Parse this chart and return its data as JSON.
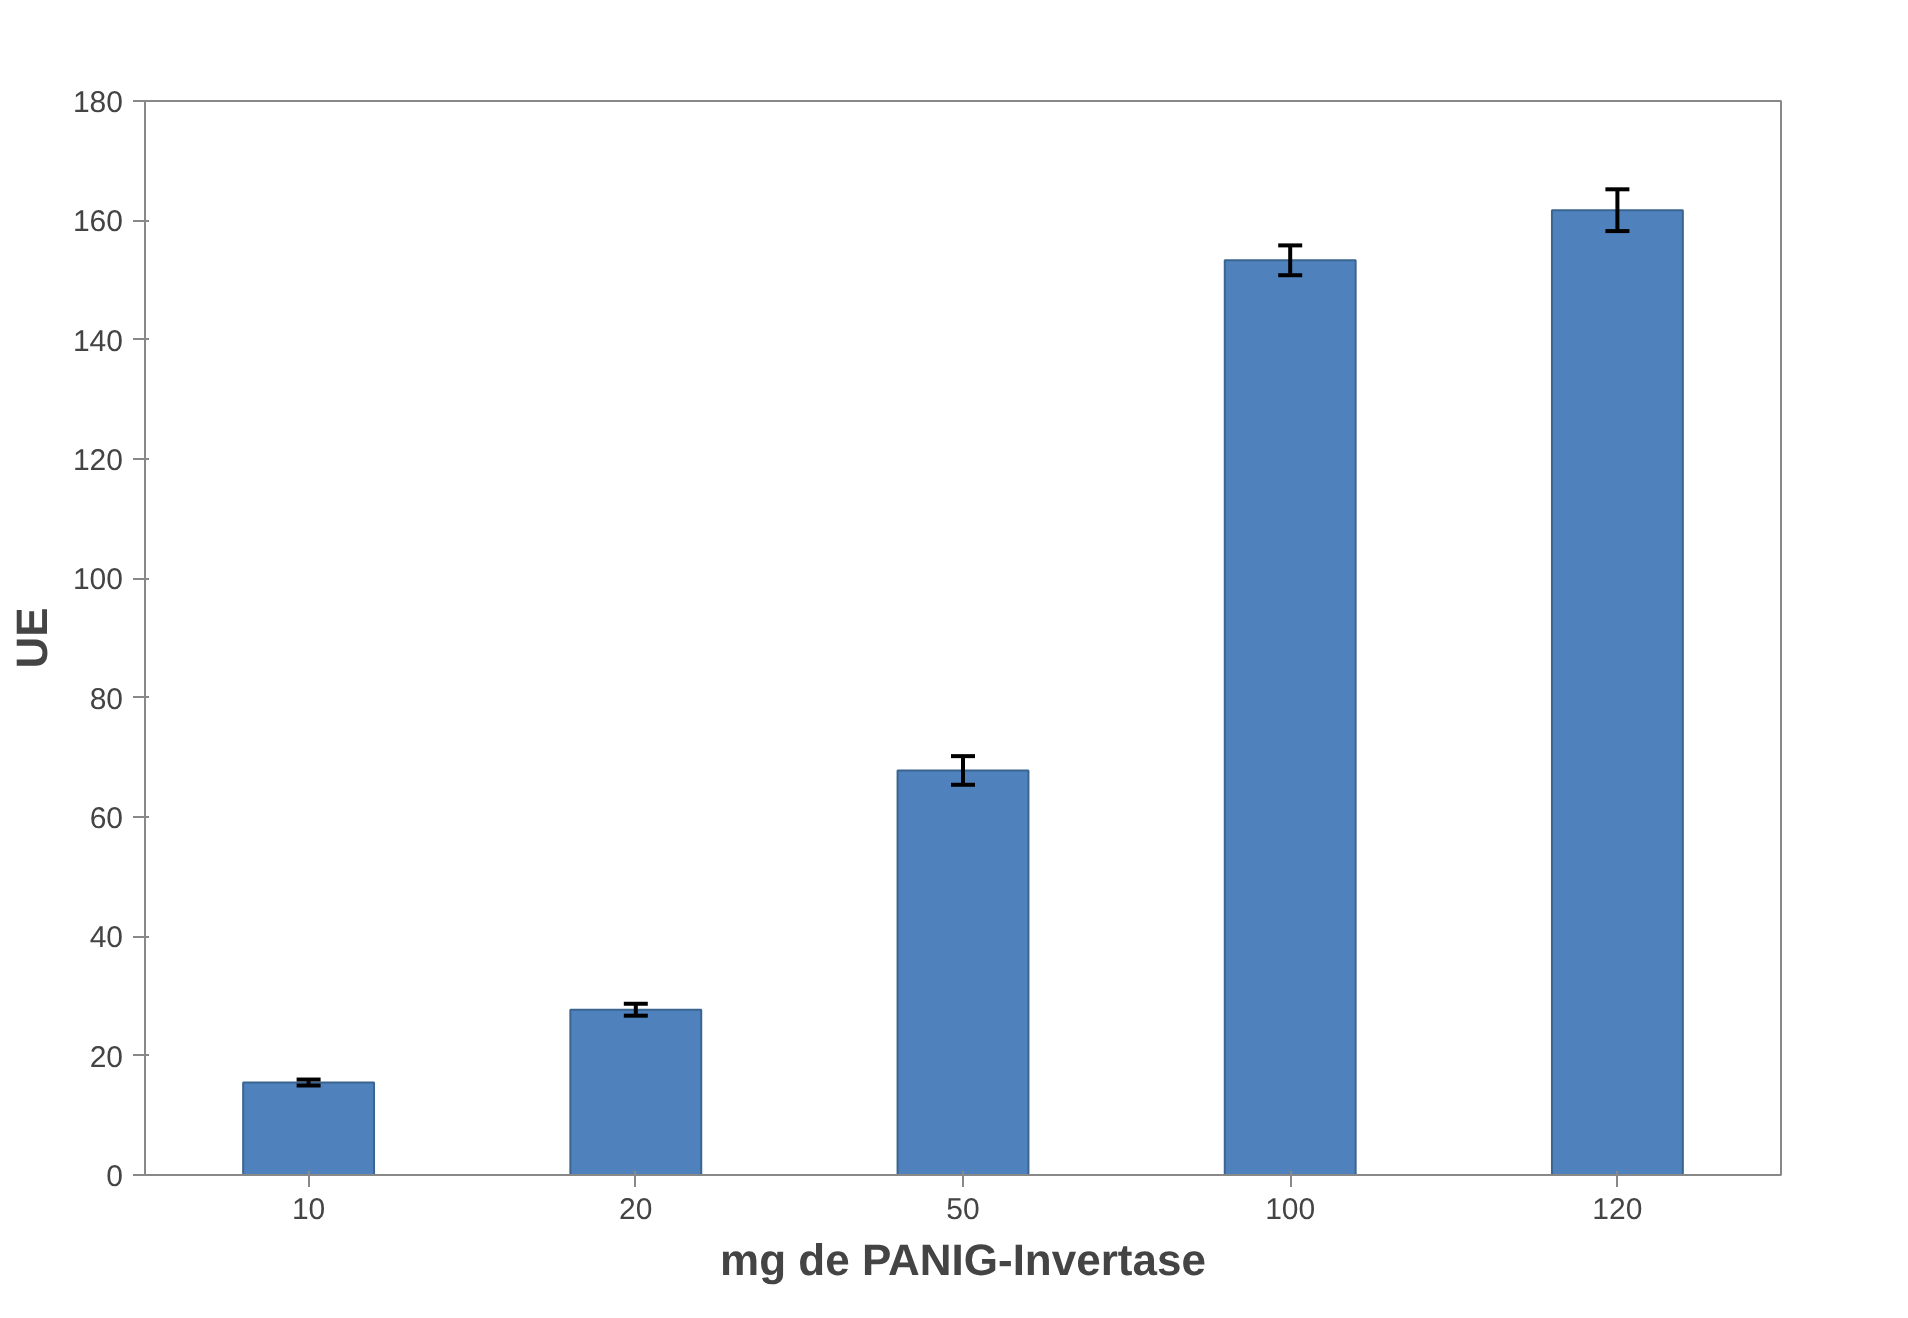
{
  "chart_data": {
    "type": "bar",
    "xlabel": "mg de PANIG-Invertase",
    "ylabel": "UE",
    "categories": [
      "10",
      "20",
      "50",
      "100",
      "120"
    ],
    "values": [
      15.5,
      27.7,
      67.8,
      153.3,
      161.7
    ],
    "errors": [
      0.5,
      1,
      2.4,
      2.5,
      3.5
    ],
    "color": "#4f81bd",
    "ylim": [
      0,
      180
    ],
    "yticks": [
      0,
      20,
      40,
      60,
      80,
      100,
      120,
      140,
      160,
      180
    ],
    "grid": false
  }
}
